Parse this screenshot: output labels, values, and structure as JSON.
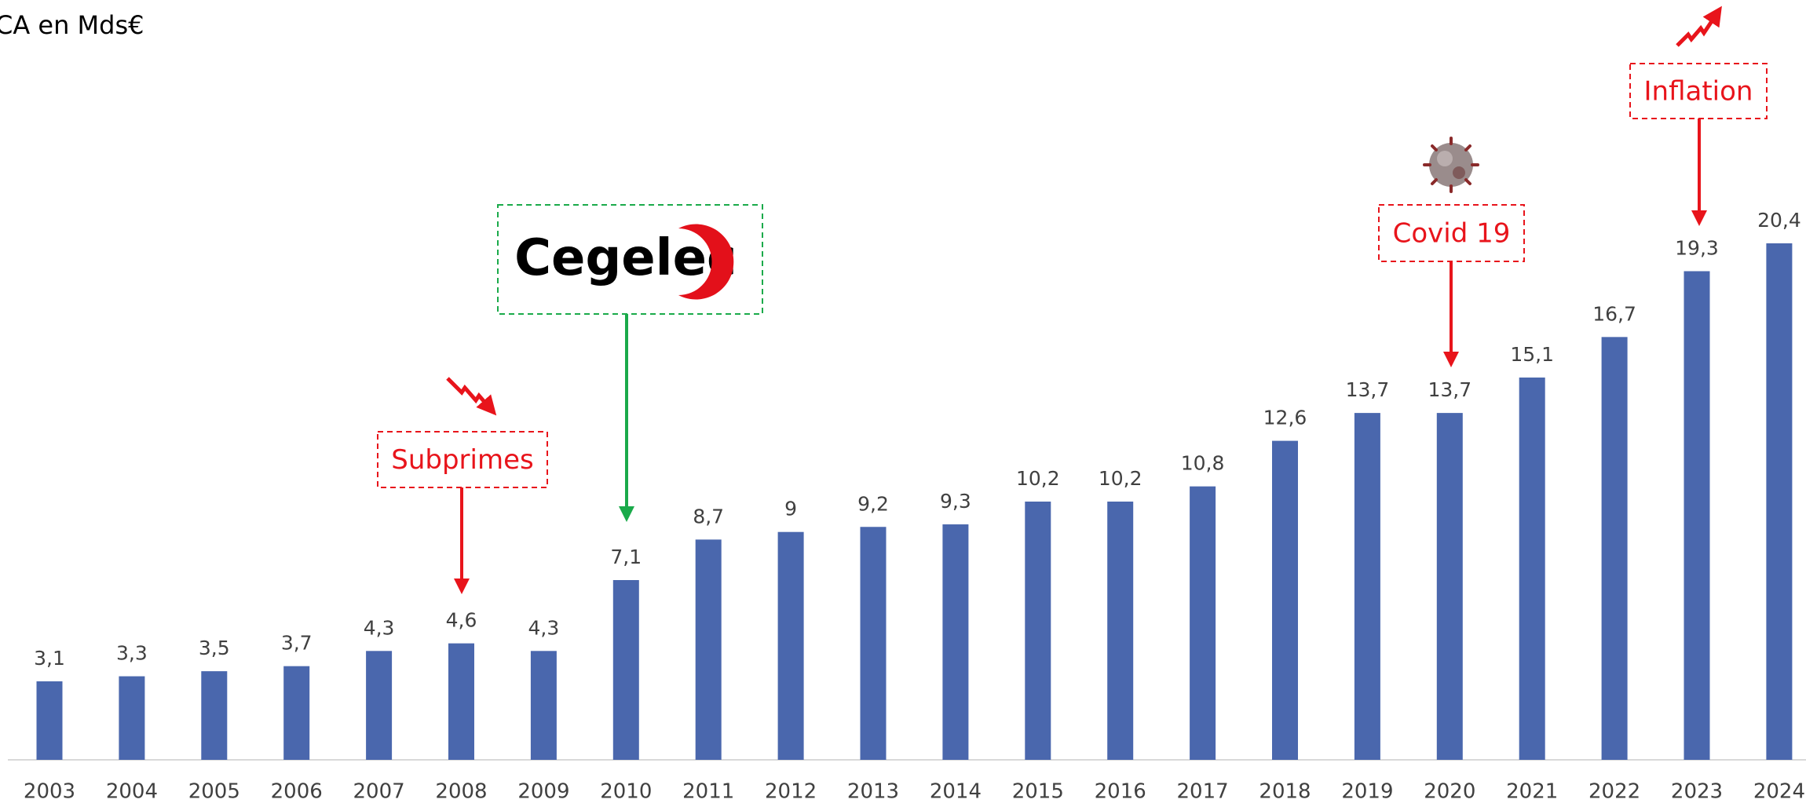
{
  "chart_data": {
    "type": "bar",
    "title": "CA en Mds€",
    "categories": [
      "2003",
      "2004",
      "2005",
      "2006",
      "2007",
      "2008",
      "2009",
      "2010",
      "2011",
      "2012",
      "2013",
      "2014",
      "2015",
      "2016",
      "2017",
      "2018",
      "2019",
      "2020",
      "2021",
      "2022",
      "2023",
      "2024"
    ],
    "values": [
      3.1,
      3.3,
      3.5,
      3.7,
      4.3,
      4.6,
      4.3,
      7.1,
      8.7,
      9,
      9.2,
      9.3,
      10.2,
      10.2,
      10.8,
      12.6,
      13.7,
      13.7,
      15.1,
      16.7,
      19.3,
      20.4
    ],
    "value_labels": [
      "3,1",
      "3,3",
      "3,5",
      "3,7",
      "4,3",
      "4,6",
      "4,3",
      "7,1",
      "8,7",
      "9",
      "9,2",
      "9,3",
      "10,2",
      "10,2",
      "10,8",
      "12,6",
      "13,7",
      "13,7",
      "15,1",
      "16,7",
      "19,3",
      "20,4"
    ],
    "color": "#4a67ad",
    "annotations": [
      "Cegelec",
      "Subprimes",
      "Covid 19",
      "Inflation"
    ]
  }
}
